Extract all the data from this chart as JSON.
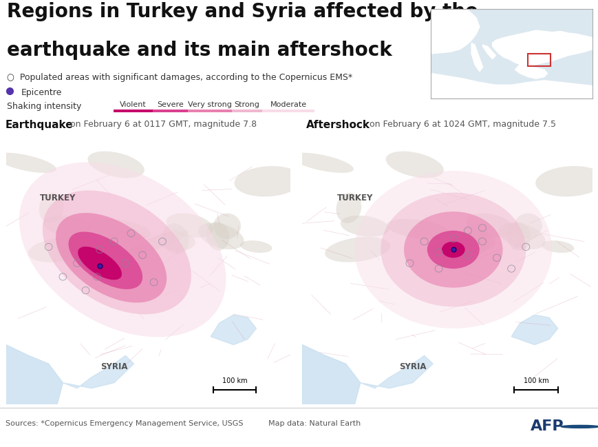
{
  "title_line1": "Regions in Turkey and Syria affected by the",
  "title_line2": "earthquake and its main aftershock",
  "legend_populated": "Populated areas with significant damages, according to the Copernicus EMS*",
  "legend_epicentre": "Epicentre",
  "shaking_label": "Shaking intensity",
  "shaking_levels": [
    "Violent",
    "Severe",
    "Very strong",
    "Strong",
    "Moderate"
  ],
  "shaking_colors": [
    "#c4006a",
    "#d94090",
    "#e880b0",
    "#f0b8d0",
    "#f8dce8"
  ],
  "eq_title": "Earthquake",
  "eq_subtitle": " on February 6 at 0117 GMT, magnitude 7.8",
  "as_title": "Aftershock",
  "as_subtitle": " on February 6 at 1024 GMT, magnitude 7.5",
  "source_text": "Sources: *Copernicus Emergency Management Service, USGS",
  "mapdata_text": "Map data: Natural Earth",
  "afp_text": "AFP",
  "scale_bar_label": "100 km",
  "turkey_label": "TURKEY",
  "syria_label": "SYRIA",
  "background_color": "#ffffff",
  "map_land_color": "#e8e4de",
  "map_mountain_color": "#d4cec6",
  "map_water_color": "#c8dff0",
  "map_river_color": "#a8c8e8",
  "inset_land_color": "#ffffff",
  "inset_water_color": "#5bb8d4",
  "inset_bg_color": "#dce8f0",
  "inset_box_color": "#cc3333",
  "title_fontsize": 20,
  "label_fontsize": 9,
  "small_fontsize": 8,
  "footer_fontsize": 8
}
